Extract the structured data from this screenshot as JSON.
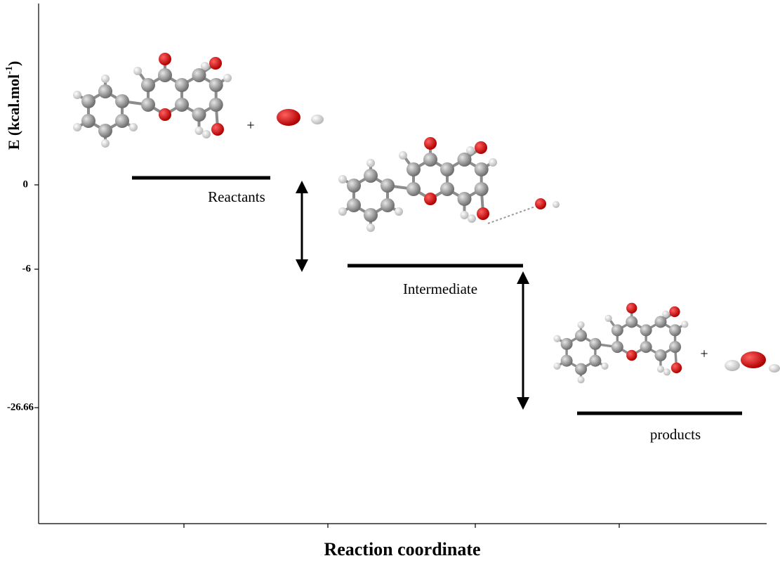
{
  "y_axis": {
    "title": "E (kcal.mol",
    "title_sup": "-1",
    "title_end": ")",
    "ticks": [
      "0",
      "-6",
      "-26.66"
    ]
  },
  "levels": [
    {
      "label": "Reactants"
    },
    {
      "label": "Intermediate"
    },
    {
      "label": "products"
    }
  ],
  "plus_signs": [
    "+",
    "+"
  ],
  "x_axis": {
    "title": "Reaction coordinate"
  }
}
